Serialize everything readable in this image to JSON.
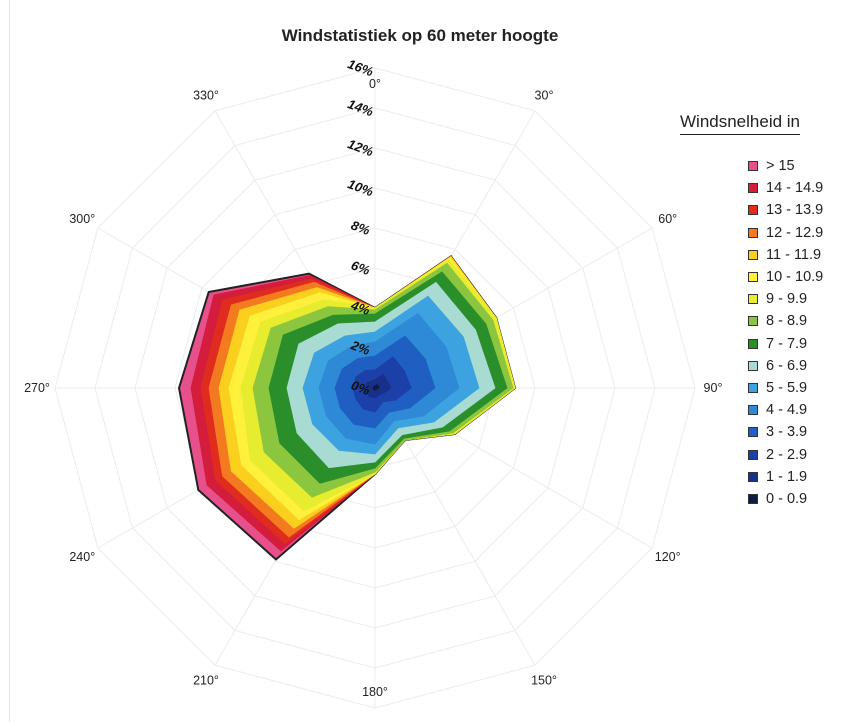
{
  "chart_data": {
    "type": "radar",
    "title": "Windstatistiek op 60 meter hoogte",
    "legend_title": "Windsnelheid in",
    "legend_position": "right",
    "grid": true,
    "angle_labels": [
      "0°",
      "30°",
      "60°",
      "90°",
      "120°",
      "150°",
      "180°",
      "210°",
      "240°",
      "270°",
      "300°",
      "330°"
    ],
    "radial_ticks": [
      "0%",
      "2%",
      "4%",
      "6%",
      "8%",
      "10%",
      "12%",
      "14%",
      "16%"
    ],
    "rlim": [
      0,
      16
    ],
    "categories": [
      0,
      30,
      60,
      90,
      120,
      150,
      180,
      210,
      240,
      270,
      300,
      330
    ],
    "series": [
      {
        "name": "> 15",
        "color": "#e8508c",
        "values": [
          4.0,
          7.6,
          7.0,
          7.0,
          4.6,
          3.0,
          4.3,
          9.9,
          10.2,
          9.8,
          9.6,
          6.6
        ]
      },
      {
        "name": "14 - 14.9",
        "color": "#d41c3c",
        "values": [
          4.0,
          7.6,
          7.0,
          7.0,
          4.6,
          3.0,
          4.3,
          9.4,
          9.7,
          9.2,
          9.3,
          6.5
        ]
      },
      {
        "name": "13 - 13.9",
        "color": "#e02c1e",
        "values": [
          4.0,
          7.6,
          7.0,
          7.0,
          4.6,
          3.0,
          4.3,
          9.0,
          9.2,
          8.7,
          8.8,
          6.3
        ]
      },
      {
        "name": "12 - 12.9",
        "color": "#f47a20",
        "values": [
          4.0,
          7.6,
          7.0,
          7.0,
          4.6,
          3.0,
          4.3,
          8.6,
          8.8,
          8.3,
          8.3,
          6.1
        ]
      },
      {
        "name": "11 - 11.9",
        "color": "#fbcf1e",
        "values": [
          4.0,
          7.6,
          7.0,
          7.0,
          4.6,
          3.0,
          4.3,
          8.1,
          8.3,
          7.8,
          7.8,
          5.8
        ]
      },
      {
        "name": "10 - 10.9",
        "color": "#fff03c",
        "values": [
          4.0,
          7.5,
          7.0,
          7.0,
          4.6,
          3.0,
          4.3,
          7.6,
          7.7,
          7.3,
          7.2,
          5.5
        ]
      },
      {
        "name": "9 - 9.9",
        "color": "#e8ec2e",
        "values": [
          4.0,
          7.4,
          7.0,
          7.0,
          4.6,
          3.0,
          4.3,
          7.1,
          7.2,
          6.7,
          6.6,
          5.1
        ]
      },
      {
        "name": "8 - 8.9",
        "color": "#8cc63e",
        "values": [
          3.9,
          7.2,
          6.8,
          6.9,
          4.5,
          3.0,
          4.2,
          6.3,
          6.4,
          6.1,
          6.0,
          4.7
        ]
      },
      {
        "name": "7 - 7.9",
        "color": "#2a8f2a",
        "values": [
          3.7,
          6.7,
          6.4,
          6.6,
          4.3,
          2.9,
          4.0,
          5.5,
          5.5,
          5.3,
          5.3,
          4.2
        ]
      },
      {
        "name": "6 - 6.9",
        "color": "#a8dcd2",
        "values": [
          3.3,
          6.1,
          5.8,
          6.0,
          3.9,
          2.7,
          3.7,
          4.6,
          4.5,
          4.4,
          4.4,
          3.7
        ]
      },
      {
        "name": "5 - 5.9",
        "color": "#3ca3e0",
        "values": [
          2.8,
          5.3,
          5.1,
          5.2,
          3.4,
          2.3,
          3.3,
          3.6,
          3.6,
          3.6,
          3.5,
          3.0
        ]
      },
      {
        "name": "4 - 4.9",
        "color": "#2e8ad6",
        "values": [
          2.3,
          4.3,
          4.1,
          4.2,
          2.8,
          1.9,
          2.8,
          2.9,
          2.8,
          2.8,
          2.7,
          2.4
        ]
      },
      {
        "name": "3 - 3.9",
        "color": "#1f5fc2",
        "values": [
          1.6,
          3.0,
          2.9,
          3.0,
          2.0,
          1.4,
          2.0,
          2.1,
          2.0,
          2.0,
          1.9,
          1.7
        ]
      },
      {
        "name": "2 - 2.9",
        "color": "#1c3fa8",
        "values": [
          0.9,
          1.8,
          1.7,
          1.8,
          1.2,
          0.8,
          1.2,
          1.2,
          1.1,
          1.1,
          1.1,
          1.0
        ]
      },
      {
        "name": "1 - 1.9",
        "color": "#17308a",
        "values": [
          0.4,
          0.8,
          0.7,
          0.8,
          0.5,
          0.4,
          0.5,
          0.5,
          0.5,
          0.5,
          0.5,
          0.4
        ]
      },
      {
        "name": "0 - 0.9",
        "color": "#0f1c3f",
        "values": [
          0.1,
          0.2,
          0.2,
          0.2,
          0.1,
          0.1,
          0.1,
          0.1,
          0.1,
          0.1,
          0.1,
          0.1
        ]
      }
    ]
  }
}
